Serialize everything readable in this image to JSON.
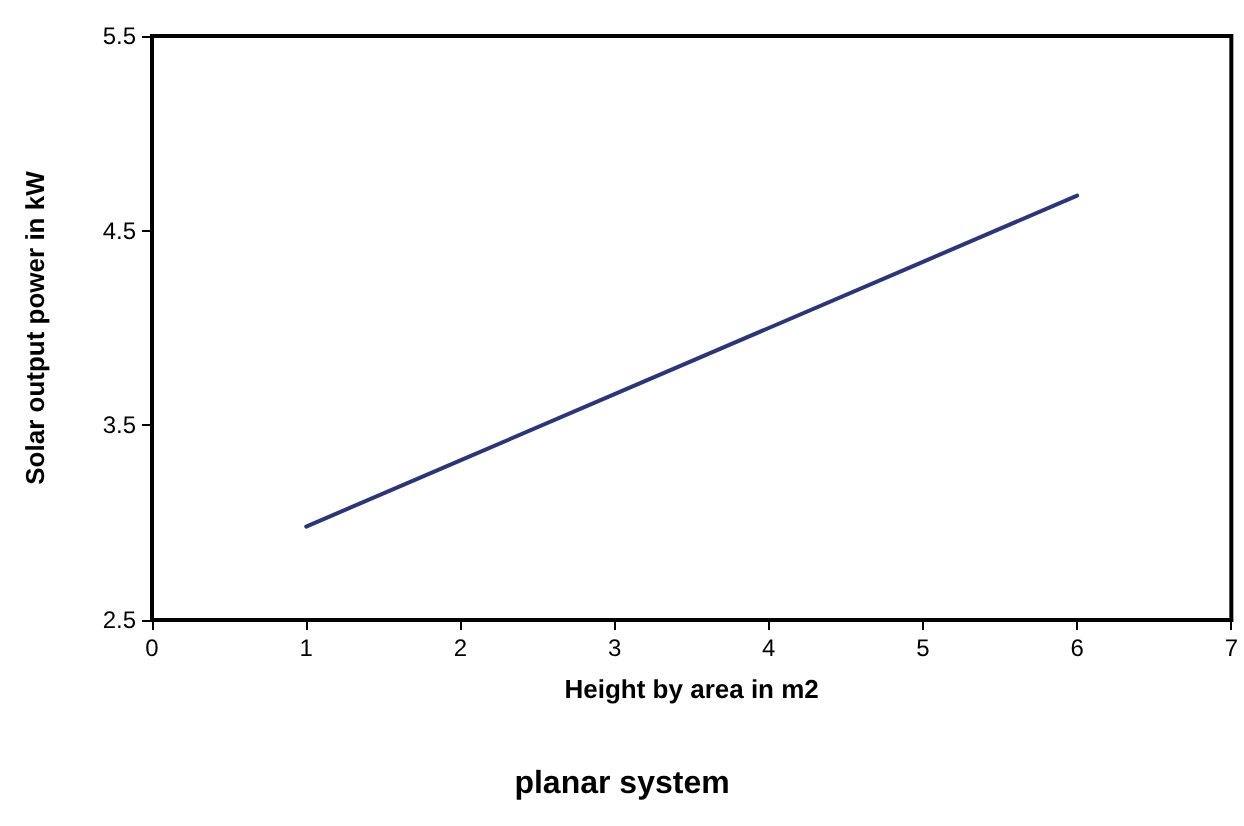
{
  "chart_data": {
    "type": "line",
    "title": "planar system",
    "xlabel": "Height by area in m2",
    "ylabel": "Solar output power in kW",
    "x": [
      1,
      2,
      3,
      4,
      5,
      6
    ],
    "series": [
      {
        "color": "#2e3575",
        "values": [
          2.98,
          3.32,
          3.66,
          4.0,
          4.34,
          4.68
        ]
      }
    ],
    "xlim": [
      0,
      7
    ],
    "xticks": [
      0,
      1,
      2,
      3,
      4,
      5,
      6,
      7
    ],
    "ylim": [
      2.5,
      5.5
    ],
    "yticks": [
      2.5,
      3.5,
      4.5,
      5.5
    ],
    "grid": false,
    "marker": "none",
    "line_style": "solid"
  }
}
